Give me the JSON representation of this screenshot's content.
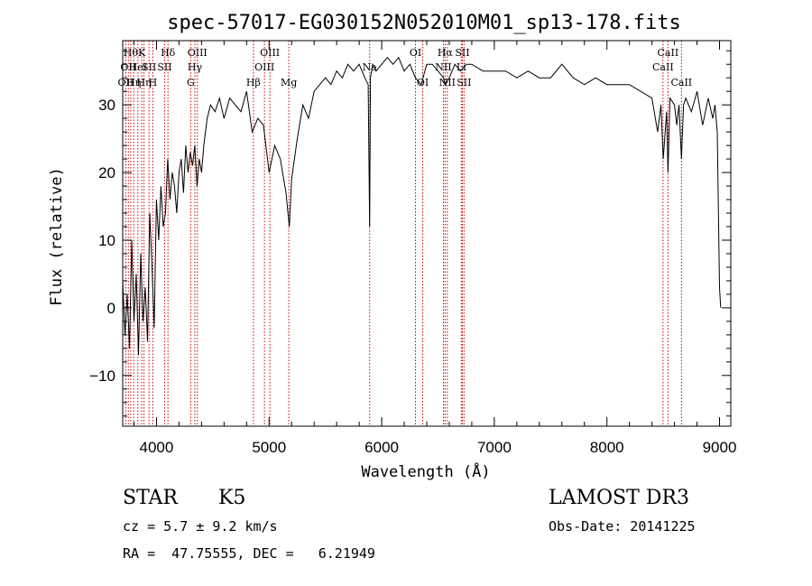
{
  "chart_data": {
    "type": "line",
    "title": "spec-57017-EG030152N052010M01_sp13-178.fits",
    "xlabel": "Wavelength (Å)",
    "ylabel": "Flux (relative)",
    "xlim": [
      3700,
      9100
    ],
    "ylim": [
      -17.5,
      39.5
    ],
    "xticks": [
      4000,
      5000,
      6000,
      7000,
      8000,
      9000
    ],
    "yticks": [
      -10,
      0,
      10,
      20,
      30
    ],
    "x": [
      3700,
      3720,
      3740,
      3760,
      3780,
      3800,
      3820,
      3840,
      3860,
      3880,
      3900,
      3920,
      3940,
      3960,
      3980,
      4000,
      4020,
      4040,
      4060,
      4080,
      4100,
      4120,
      4140,
      4160,
      4180,
      4200,
      4220,
      4240,
      4260,
      4280,
      4300,
      4320,
      4340,
      4360,
      4380,
      4400,
      4420,
      4450,
      4480,
      4520,
      4560,
      4600,
      4650,
      4700,
      4750,
      4800,
      4850,
      4900,
      4950,
      5000,
      5050,
      5100,
      5150,
      5180,
      5200,
      5250,
      5300,
      5350,
      5400,
      5450,
      5500,
      5550,
      5600,
      5650,
      5700,
      5750,
      5800,
      5850,
      5880,
      5893,
      5900,
      5920,
      5950,
      6000,
      6050,
      6100,
      6150,
      6200,
      6250,
      6300,
      6350,
      6400,
      6450,
      6500,
      6550,
      6563,
      6600,
      6650,
      6700,
      6750,
      6800,
      6900,
      7000,
      7100,
      7200,
      7300,
      7400,
      7500,
      7600,
      7700,
      7800,
      7900,
      8000,
      8100,
      8200,
      8300,
      8400,
      8450,
      8480,
      8500,
      8530,
      8542,
      8560,
      8600,
      8620,
      8640,
      8662,
      8680,
      8700,
      8750,
      8800,
      8850,
      8900,
      8940,
      8960,
      8980,
      9000,
      9010
    ],
    "y": [
      4,
      -4,
      2,
      -6,
      10,
      -2,
      5,
      -7,
      8,
      -2,
      3,
      -5,
      14,
      6,
      -3,
      16,
      10,
      18,
      12,
      14,
      22,
      16,
      20,
      18,
      14,
      20,
      22,
      17,
      24,
      20,
      23,
      21,
      24,
      18,
      22,
      20,
      24,
      28,
      30,
      29,
      31,
      28,
      31,
      30,
      29,
      32,
      26,
      28,
      27,
      20,
      24,
      22,
      17,
      12,
      19,
      25,
      30,
      28,
      32,
      33,
      34,
      33,
      35,
      34,
      36,
      35,
      36,
      34,
      33,
      12,
      34,
      36,
      35,
      36,
      37,
      36,
      37,
      35,
      36,
      34,
      33,
      36,
      36,
      35,
      34,
      33,
      34,
      36,
      35,
      36,
      36,
      35,
      35,
      35,
      34,
      35,
      34,
      34,
      36,
      34,
      33,
      34,
      33,
      33,
      33,
      32,
      31,
      26,
      30,
      22,
      29,
      20,
      31,
      30,
      27,
      30,
      22,
      30,
      31,
      29,
      32,
      27,
      31,
      28,
      30,
      26,
      3,
      0
    ],
    "line_ids": [
      {
        "wave": 3727,
        "label": "OII",
        "row": 2
      },
      {
        "wave": 3750,
        "label": "OII",
        "row": 1
      },
      {
        "wave": 3771,
        "label": "Hθ",
        "row": 0
      },
      {
        "wave": 3798,
        "label": "Hη",
        "row": 2
      },
      {
        "wave": 3835,
        "label": "HeI",
        "row": 1
      },
      {
        "wave": 3869,
        "label": "K",
        "row": 0
      },
      {
        "wave": 3889,
        "label": "Hη",
        "row": 2
      },
      {
        "wave": 3934,
        "label": "SII",
        "row": 1
      },
      {
        "wave": 3968,
        "label": "H",
        "row": 2
      },
      {
        "wave": 4072,
        "label": "SII",
        "row": 1
      },
      {
        "wave": 4102,
        "label": "Hδ",
        "row": 0
      },
      {
        "wave": 4304,
        "label": "G",
        "row": 2
      },
      {
        "wave": 4341,
        "label": "Hγ",
        "row": 1
      },
      {
        "wave": 4363,
        "label": "OIII",
        "row": 0
      },
      {
        "wave": 4861,
        "label": "Hβ",
        "row": 2
      },
      {
        "wave": 4959,
        "label": "OIII",
        "row": 1
      },
      {
        "wave": 5007,
        "label": "OIII",
        "row": 0
      },
      {
        "wave": 5175,
        "label": "Mg",
        "row": 2
      },
      {
        "wave": 5893,
        "label": "Na",
        "row": 1
      },
      {
        "wave": 6300,
        "label": "OI",
        "row": 0
      },
      {
        "wave": 6364,
        "label": "OI",
        "row": 2
      },
      {
        "wave": 6548,
        "label": "NII",
        "row": 1
      },
      {
        "wave": 6563,
        "label": "Hα",
        "row": 0
      },
      {
        "wave": 6583,
        "label": "NII",
        "row": 2
      },
      {
        "wave": 6707,
        "label": "Li",
        "row": 1
      },
      {
        "wave": 6716,
        "label": "SII",
        "row": 0
      },
      {
        "wave": 6731,
        "label": "SII",
        "row": 2
      },
      {
        "wave": 8498,
        "label": "CaII",
        "row": 1
      },
      {
        "wave": 8542,
        "label": "CaII",
        "row": 0
      },
      {
        "wave": 8662,
        "label": "CaII",
        "row": 2
      }
    ]
  },
  "info": {
    "class_label": "STAR",
    "subclass": "K5",
    "survey": "LAMOST DR3",
    "cz": "cz = 5.7 ± 9.2 km/s",
    "obs_date": "Obs-Date: 20141225",
    "coords": "RA =  47.75555, DEC =   6.21949"
  },
  "colors": {
    "spectrum": "#000000",
    "line_markers": "#cc0000",
    "axes": "#000000",
    "background": "#ffffff"
  }
}
